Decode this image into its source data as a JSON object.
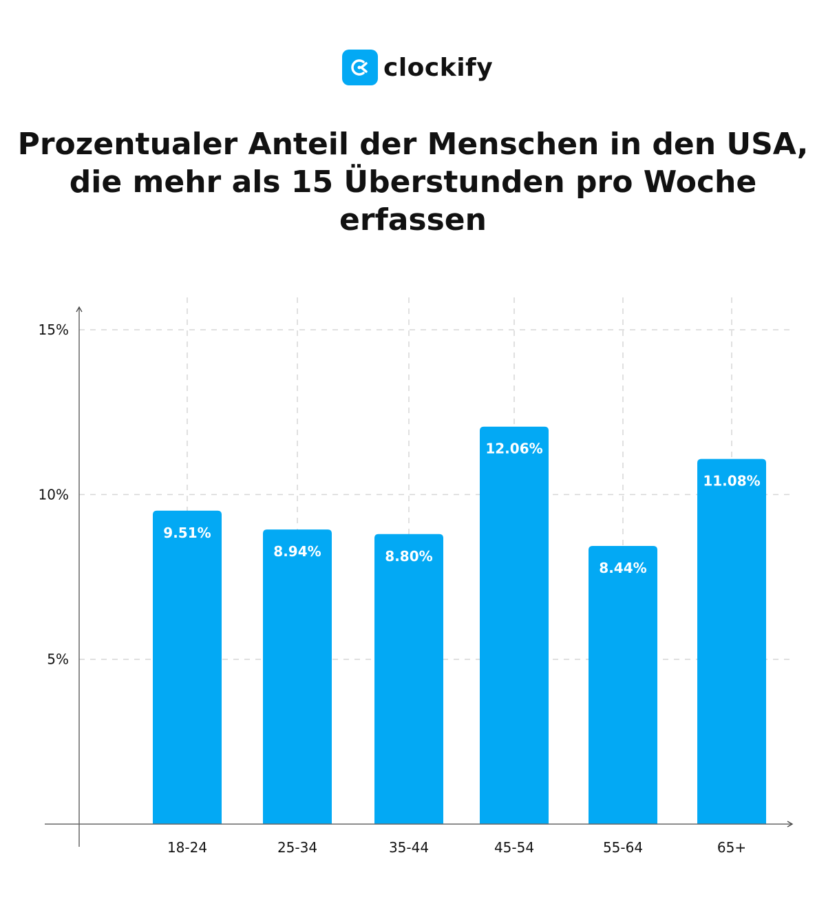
{
  "logo": {
    "text": "clockify",
    "color": "#03a9f4"
  },
  "chart_data": {
    "type": "bar",
    "title": "Prozentualer Anteil der Menschen in den USA, die mehr als 15 Überstunden pro Woche erfassen",
    "categories": [
      "18-24",
      "25-34",
      "35-44",
      "45-54",
      "55-64",
      "65+"
    ],
    "values": [
      9.51,
      8.94,
      8.8,
      12.06,
      8.44,
      11.08
    ],
    "data_labels": [
      "9.51%",
      "8.94%",
      "8.80%",
      "12.06%",
      "8.44%",
      "11.08%"
    ],
    "yticks": [
      5,
      10,
      15
    ],
    "ytick_labels": [
      "5%",
      "10%",
      "15%"
    ],
    "ylim": [
      0,
      15
    ],
    "xlabel": "",
    "ylabel": "",
    "grid": true,
    "bar_color": "#03a9f4"
  }
}
